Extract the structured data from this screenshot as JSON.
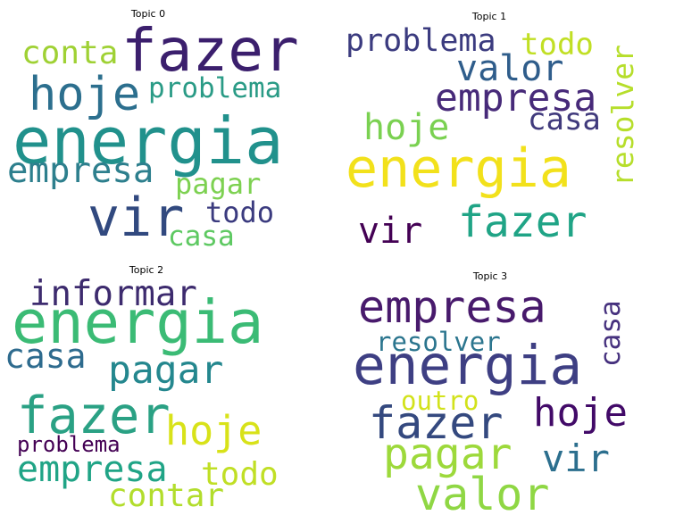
{
  "figure": {
    "panels": [
      {
        "title": "Topic 0",
        "words": [
          {
            "text": "fazer",
            "color": "#3b1f6d"
          },
          {
            "text": "conta",
            "color": "#9fd134"
          },
          {
            "text": "hoje",
            "color": "#2c6f8e"
          },
          {
            "text": "problema",
            "color": "#2a9b86"
          },
          {
            "text": "energia",
            "color": "#21918c"
          },
          {
            "text": "empresa",
            "color": "#2d7f8d"
          },
          {
            "text": "pagar",
            "color": "#7dd151"
          },
          {
            "text": "vir",
            "color": "#31497f"
          },
          {
            "text": "todo",
            "color": "#3b3b7f"
          },
          {
            "text": "casa",
            "color": "#5ec962"
          }
        ]
      },
      {
        "title": "Topic 1",
        "words": [
          {
            "text": "problema",
            "color": "#3b3b7f"
          },
          {
            "text": "todo",
            "color": "#c1df24"
          },
          {
            "text": "valor",
            "color": "#2f5d8b"
          },
          {
            "text": "resolver",
            "color": "#b6de2b"
          },
          {
            "text": "empresa",
            "color": "#472a79"
          },
          {
            "text": "casa",
            "color": "#403a7c"
          },
          {
            "text": "hoje",
            "color": "#7ad151"
          },
          {
            "text": "energia",
            "color": "#f2e11b"
          },
          {
            "text": "fazer",
            "color": "#20a486"
          },
          {
            "text": "vir",
            "color": "#440154"
          }
        ]
      },
      {
        "title": "Topic 2",
        "words": [
          {
            "text": "informar",
            "color": "#3d2b6e"
          },
          {
            "text": "energia",
            "color": "#3bbb75"
          },
          {
            "text": "casa",
            "color": "#2e6b8e"
          },
          {
            "text": "pagar",
            "color": "#24878e"
          },
          {
            "text": "fazer",
            "color": "#2aa184"
          },
          {
            "text": "hoje",
            "color": "#d8e219"
          },
          {
            "text": "problema",
            "color": "#440154"
          },
          {
            "text": "empresa",
            "color": "#20a486"
          },
          {
            "text": "todo",
            "color": "#c0df25"
          },
          {
            "text": "contar",
            "color": "#b2dd2c"
          }
        ]
      },
      {
        "title": "Topic 3",
        "words": [
          {
            "text": "empresa",
            "color": "#481a6c"
          },
          {
            "text": "casa",
            "color": "#46317e"
          },
          {
            "text": "resolver",
            "color": "#2b758e"
          },
          {
            "text": "energia",
            "color": "#3e3f83"
          },
          {
            "text": "outro",
            "color": "#d2e21b"
          },
          {
            "text": "hoje",
            "color": "#420a68"
          },
          {
            "text": "fazer",
            "color": "#34497f"
          },
          {
            "text": "pagar",
            "color": "#9dd93b"
          },
          {
            "text": "vir",
            "color": "#2c6f8e"
          },
          {
            "text": "valor",
            "color": "#8fd744"
          }
        ]
      }
    ]
  }
}
